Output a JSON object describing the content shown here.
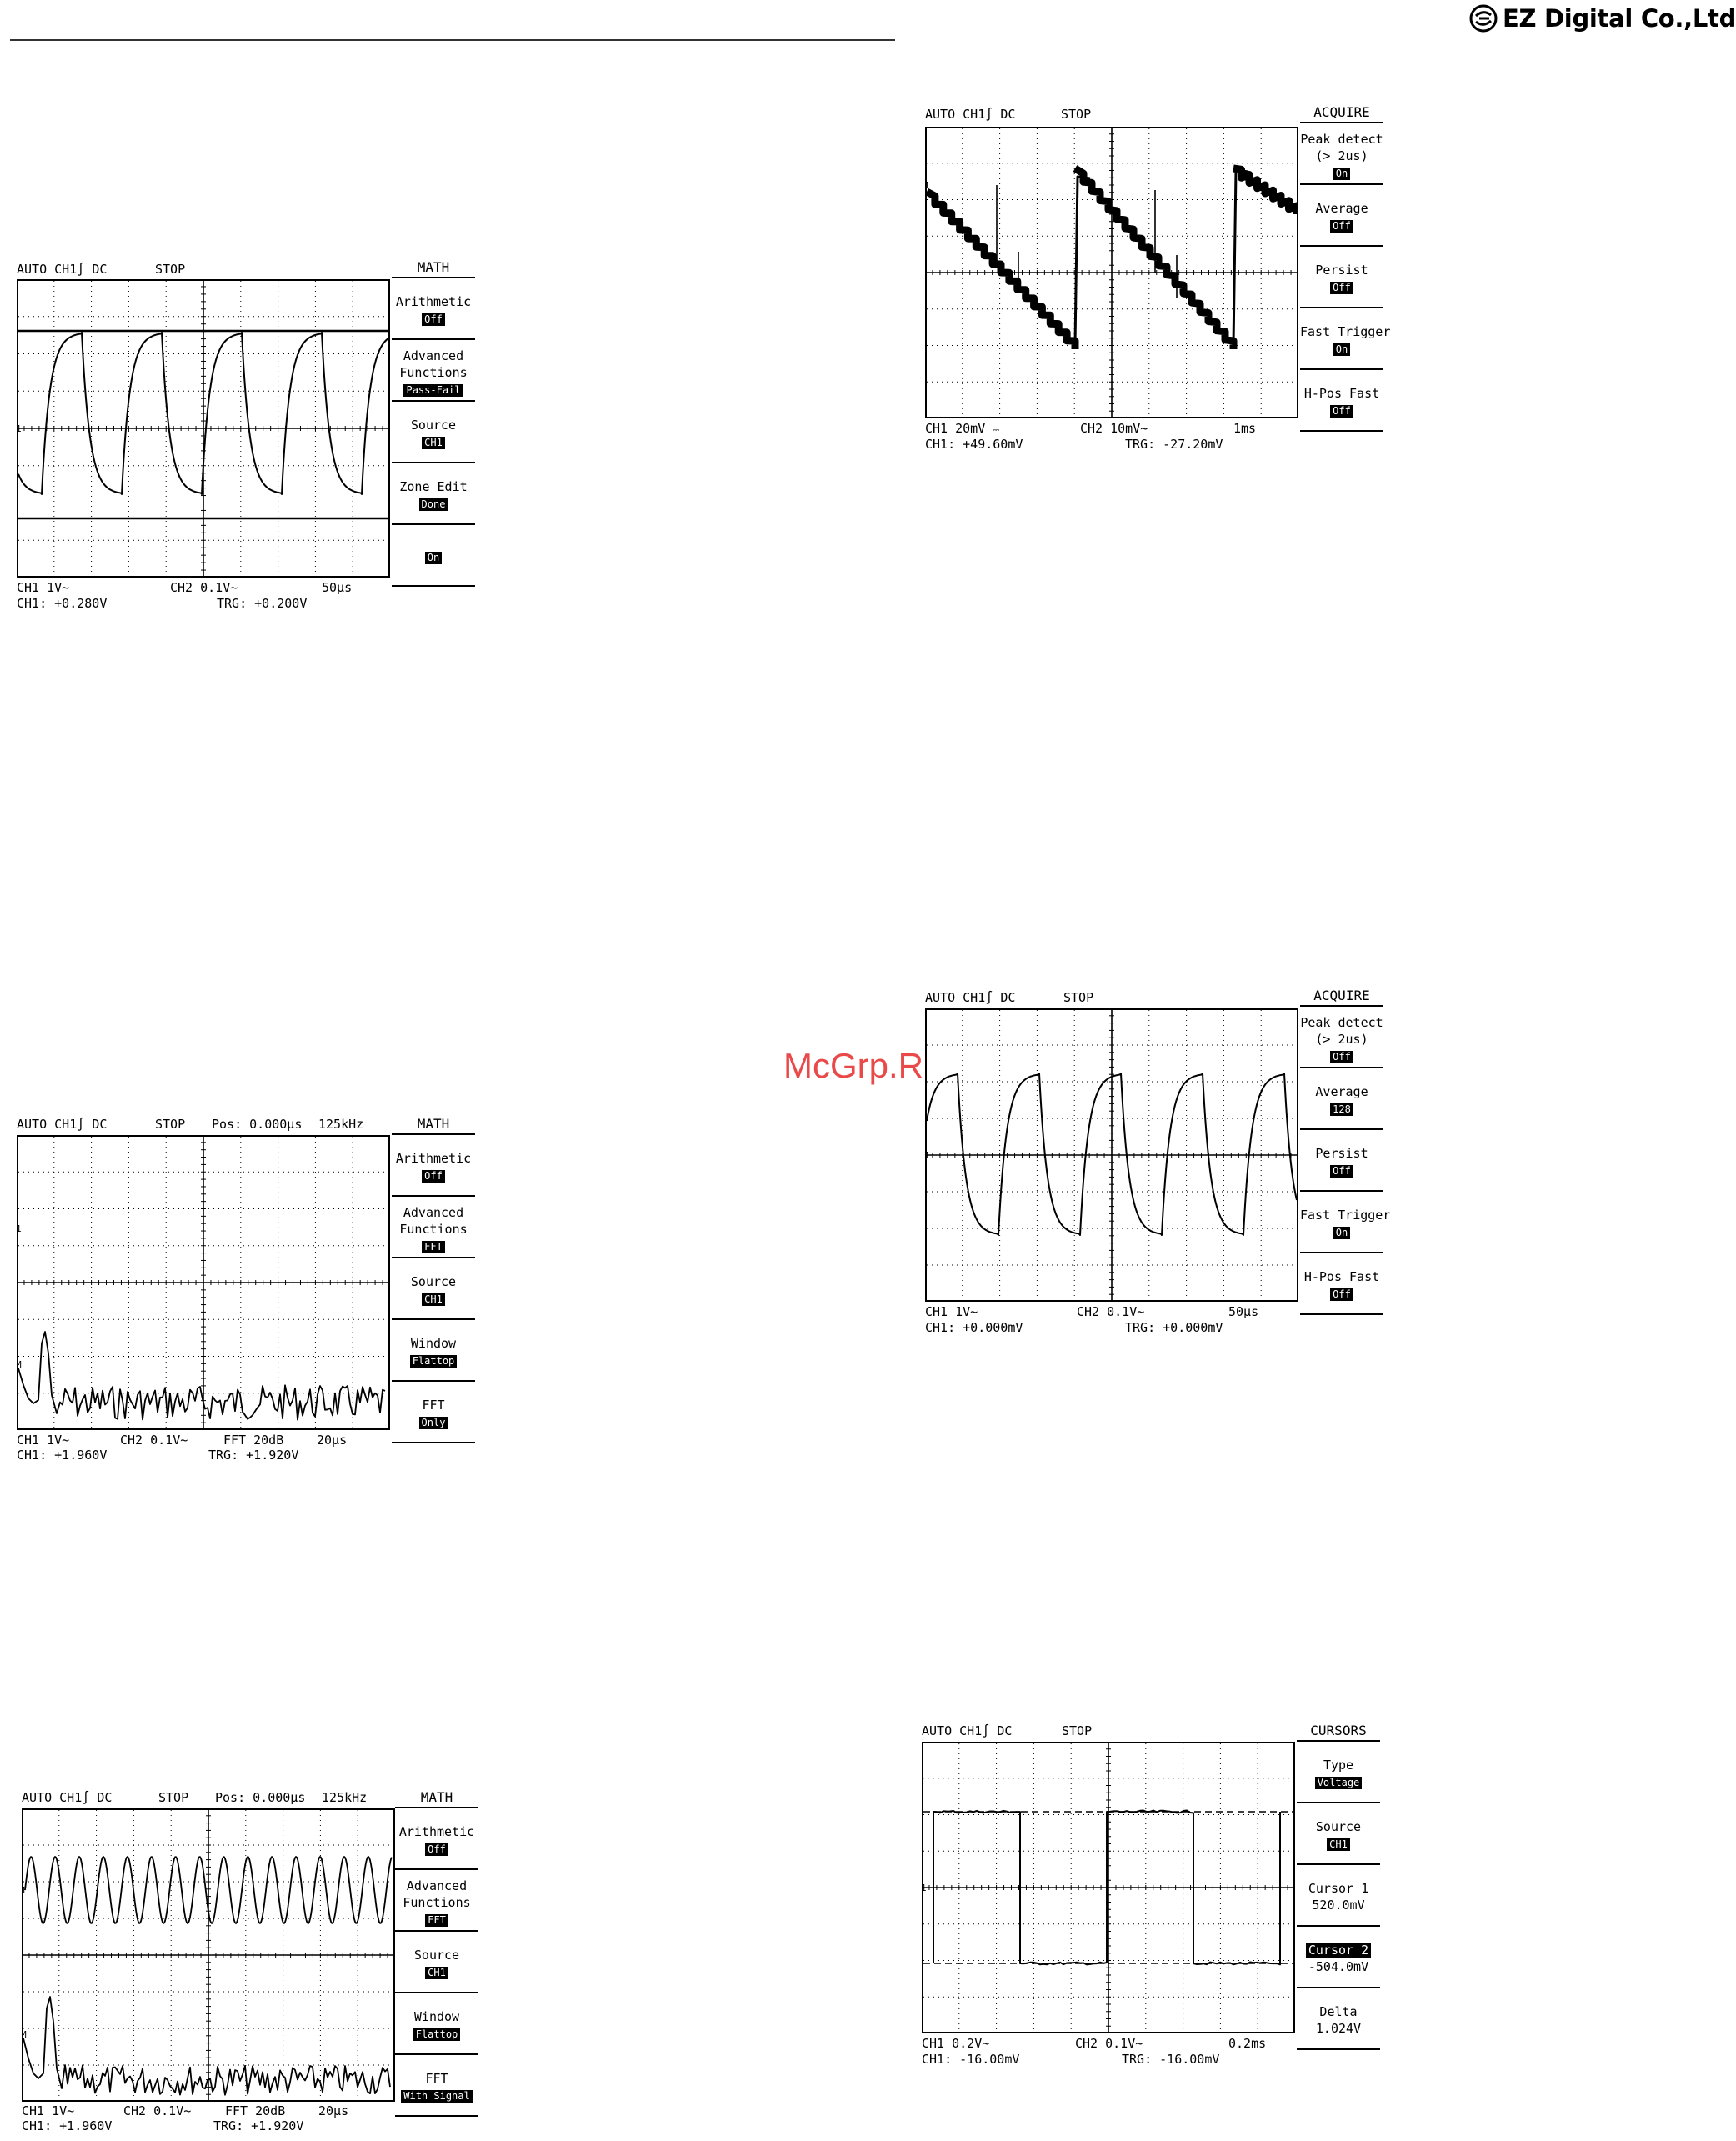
{
  "header": {
    "brand": "EZ Digital Co.,Ltd."
  },
  "watermark": "McGrp.Ru",
  "scopes": [
    {
      "status": {
        "mode": "AUTO",
        "trigger": "CH1",
        "coupling": "DC",
        "state": "STOP",
        "pos": "",
        "rate": ""
      },
      "footer": {
        "ch1": "CH1 1V~",
        "ch2": "CH2 0.1V~",
        "extra": "",
        "timebase": "50µs",
        "ch1_value": "CH1: +0.280V",
        "trg": "TRG: +0.200V"
      },
      "menu": {
        "title": "MATH",
        "items": [
          {
            "label": [
              "Arithmetic"
            ],
            "value": "Off"
          },
          {
            "label": [
              "Advanced",
              "Functions"
            ],
            "value": "Pass-Fail"
          },
          {
            "label": [
              "Source"
            ],
            "value": "CH1"
          },
          {
            "label": [
              "Zone Edit"
            ],
            "value": "Done"
          },
          {
            "label": [],
            "value": "On"
          }
        ]
      }
    },
    {
      "status": {
        "mode": "AUTO",
        "trigger": "CH1",
        "coupling": "DC",
        "state": "STOP",
        "pos": "",
        "rate": ""
      },
      "footer": {
        "ch1": "CH1 20mV",
        "ch2": "CH2 10mV~",
        "extra": "",
        "timebase": "1ms",
        "ch1_value": "CH1: +49.60mV",
        "trg": "TRG: -27.20mV"
      },
      "menu": {
        "title": "ACQUIRE",
        "items": [
          {
            "label": [
              "Peak detect",
              "(> 2us)"
            ],
            "value": "On"
          },
          {
            "label": [
              "Average"
            ],
            "value": "Off"
          },
          {
            "label": [
              "Persist"
            ],
            "value": "Off"
          },
          {
            "label": [
              "Fast Trigger"
            ],
            "value": "On"
          },
          {
            "label": [
              "H-Pos Fast"
            ],
            "value": "Off"
          }
        ]
      }
    },
    {
      "status": {
        "mode": "AUTO",
        "trigger": "CH1",
        "coupling": "DC",
        "state": "STOP",
        "pos": "Pos: 0.000µs",
        "rate": "125kHz"
      },
      "footer": {
        "ch1": "CH1 1V~",
        "ch2": "CH2 0.1V~",
        "extra": "FFT 20dB",
        "timebase": "20µs",
        "ch1_value": "CH1: +1.960V",
        "trg": "TRG: +1.920V"
      },
      "menu": {
        "title": "MATH",
        "items": [
          {
            "label": [
              "Arithmetic"
            ],
            "value": "Off"
          },
          {
            "label": [
              "Advanced",
              "Functions"
            ],
            "value": "FFT"
          },
          {
            "label": [
              "Source"
            ],
            "value": "CH1"
          },
          {
            "label": [
              "Window"
            ],
            "value": "Flattop"
          },
          {
            "label": [
              "FFT"
            ],
            "value": "Only"
          }
        ]
      }
    },
    {
      "status": {
        "mode": "AUTO",
        "trigger": "CH1",
        "coupling": "DC",
        "state": "STOP",
        "pos": "",
        "rate": ""
      },
      "footer": {
        "ch1": "CH1 1V~",
        "ch2": "CH2 0.1V~",
        "extra": "",
        "timebase": "50µs",
        "ch1_value": "CH1: +0.000mV",
        "trg": "TRG: +0.000mV"
      },
      "menu": {
        "title": "ACQUIRE",
        "items": [
          {
            "label": [
              "Peak detect",
              "(> 2us)"
            ],
            "value": "Off"
          },
          {
            "label": [
              "Average"
            ],
            "value": "128"
          },
          {
            "label": [
              "Persist"
            ],
            "value": "Off"
          },
          {
            "label": [
              "Fast Trigger"
            ],
            "value": "On"
          },
          {
            "label": [
              "H-Pos Fast"
            ],
            "value": "Off"
          }
        ]
      }
    },
    {
      "status": {
        "mode": "AUTO",
        "trigger": "CH1",
        "coupling": "DC",
        "state": "STOP",
        "pos": "Pos: 0.000µs",
        "rate": "125kHz"
      },
      "footer": {
        "ch1": "CH1 1V~",
        "ch2": "CH2 0.1V~",
        "extra": "FFT 20dB",
        "timebase": "20µs",
        "ch1_value": "CH1: +1.960V",
        "trg": "TRG: +1.920V"
      },
      "menu": {
        "title": "MATH",
        "items": [
          {
            "label": [
              "Arithmetic"
            ],
            "value": "Off"
          },
          {
            "label": [
              "Advanced",
              "Functions"
            ],
            "value": "FFT"
          },
          {
            "label": [
              "Source"
            ],
            "value": "CH1"
          },
          {
            "label": [
              "Window"
            ],
            "value": "Flattop"
          },
          {
            "label": [
              "FFT"
            ],
            "value": "With Signal"
          }
        ]
      }
    },
    {
      "status": {
        "mode": "AUTO",
        "trigger": "CH1",
        "coupling": "DC",
        "state": "STOP",
        "pos": "",
        "rate": ""
      },
      "footer": {
        "ch1": "CH1 0.2V~",
        "ch2": "CH2 0.1V~",
        "extra": "",
        "timebase": "0.2ms",
        "ch1_value": "CH1: -16.00mV",
        "trg": "TRG: -16.00mV"
      },
      "menu": {
        "title": "CURSORS",
        "items": [
          {
            "label": [
              "Type"
            ],
            "value": "Voltage"
          },
          {
            "label": [
              "Source"
            ],
            "value": "CH1"
          },
          {
            "label": [
              "Cursor 1"
            ],
            "text": "520.0mV"
          },
          {
            "label": [
              "Cursor 2"
            ],
            "text": "-504.0mV",
            "inverted": true
          },
          {
            "label": [
              "Delta"
            ],
            "text": "1.024V"
          }
        ]
      }
    }
  ]
}
